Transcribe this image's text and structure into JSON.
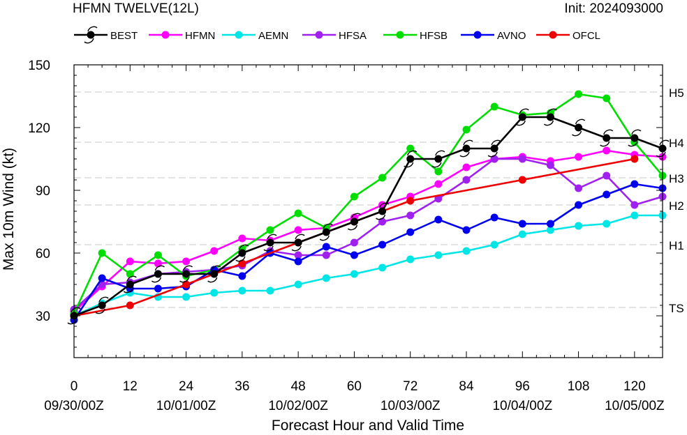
{
  "chart_data": {
    "type": "line",
    "title": "HFMN TWELVE(12L)",
    "subtitle": "Init: 2024093000",
    "xlabel": "Forecast Hour and Valid Time",
    "ylabel": "Max 10m Wind (kt)",
    "xlim": [
      0,
      126
    ],
    "ylim": [
      10,
      150
    ],
    "x_ticks": [
      0,
      12,
      24,
      36,
      48,
      60,
      72,
      84,
      96,
      108,
      120
    ],
    "x_date_labels": [
      {
        "x": 0,
        "label": "09/30/00Z"
      },
      {
        "x": 24,
        "label": "10/01/00Z"
      },
      {
        "x": 48,
        "label": "10/02/00Z"
      },
      {
        "x": 72,
        "label": "10/03/00Z"
      },
      {
        "x": 96,
        "label": "10/04/00Z"
      },
      {
        "x": 120,
        "label": "10/05/00Z"
      }
    ],
    "y_ticks": [
      30,
      60,
      90,
      120,
      150
    ],
    "category_lines": [
      {
        "value": 34,
        "label": "TS"
      },
      {
        "value": 64,
        "label": "H1"
      },
      {
        "value": 83,
        "label": "H2"
      },
      {
        "value": 96,
        "label": "H3"
      },
      {
        "value": 113,
        "label": "H4"
      },
      {
        "value": 137,
        "label": "H5"
      }
    ],
    "legend_position": "top",
    "series": [
      {
        "name": "HFMN",
        "color": "#ff00ff",
        "x": [
          0,
          6,
          12,
          18,
          24,
          30,
          36,
          42,
          48,
          54,
          60,
          66,
          72,
          78,
          84,
          90,
          96,
          102,
          108,
          114,
          120,
          126
        ],
        "y": [
          32,
          44,
          56,
          55,
          56,
          61,
          67,
          66,
          71,
          72,
          77,
          83,
          87,
          93,
          101,
          105,
          106,
          104,
          106,
          109,
          107,
          106
        ]
      },
      {
        "name": "AEMN",
        "color": "#00e5e5",
        "x": [
          0,
          6,
          12,
          18,
          24,
          30,
          36,
          42,
          48,
          54,
          60,
          66,
          72,
          78,
          84,
          90,
          96,
          102,
          108,
          114,
          120,
          126
        ],
        "y": [
          30,
          36,
          41,
          39,
          39,
          41,
          42,
          42,
          45,
          48,
          50,
          53,
          57,
          59,
          61,
          64,
          69,
          71,
          73,
          74,
          78,
          78
        ]
      },
      {
        "name": "HFSA",
        "color": "#a020f0",
        "x": [
          0,
          6,
          12,
          18,
          24,
          30,
          36,
          42,
          48,
          54,
          60,
          66,
          72,
          78,
          84,
          90,
          96,
          102,
          108,
          114,
          120,
          126
        ],
        "y": [
          33,
          45,
          46,
          50,
          51,
          52,
          54,
          61,
          59,
          59,
          65,
          75,
          78,
          86,
          95,
          105,
          105,
          102,
          91,
          97,
          83,
          87
        ]
      },
      {
        "name": "HFSB",
        "color": "#00dd00",
        "x": [
          0,
          6,
          12,
          18,
          24,
          30,
          36,
          42,
          48,
          54,
          60,
          66,
          72,
          78,
          84,
          90,
          96,
          102,
          108,
          114,
          120,
          126
        ],
        "y": [
          31,
          60,
          50,
          59,
          49,
          52,
          62,
          71,
          79,
          72,
          87,
          96,
          110,
          99,
          119,
          130,
          126,
          127,
          136,
          134,
          113,
          97
        ]
      },
      {
        "name": "AVNO",
        "color": "#0000ee",
        "x": [
          0,
          6,
          12,
          18,
          24,
          30,
          36,
          42,
          48,
          54,
          60,
          66,
          72,
          78,
          84,
          90,
          96,
          102,
          108,
          114,
          120,
          126
        ],
        "y": [
          28,
          48,
          43,
          43,
          44,
          52,
          49,
          60,
          56,
          63,
          59,
          64,
          70,
          76,
          71,
          77,
          74,
          74,
          83,
          88,
          93,
          91
        ]
      },
      {
        "name": "OFCL",
        "color": "#ee0000",
        "x": [
          0,
          12,
          24,
          36,
          48,
          60,
          72,
          96,
          120
        ],
        "y": [
          30,
          35,
          45,
          55,
          65,
          75,
          85,
          95,
          105
        ]
      },
      {
        "name": "BEST",
        "color": "#000000",
        "x": [
          0,
          6,
          12,
          18,
          24,
          30,
          36,
          42,
          48,
          54,
          60,
          66,
          72,
          78,
          84,
          90,
          96,
          102,
          108,
          114,
          120,
          126
        ],
        "y": [
          30,
          35,
          45,
          50,
          50,
          50,
          60,
          65,
          65,
          70,
          75,
          80,
          105,
          105,
          110,
          110,
          125,
          125,
          120,
          115,
          115,
          110
        ]
      }
    ],
    "legend_order": [
      "BEST",
      "HFMN",
      "AEMN",
      "HFSA",
      "HFSB",
      "AVNO",
      "OFCL"
    ]
  }
}
